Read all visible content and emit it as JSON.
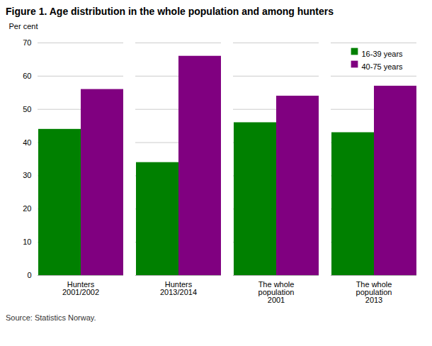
{
  "chart_data": {
    "type": "bar",
    "title": "Figure 1. Age distribution in the whole population and among hunters",
    "ylabel": "Per cent",
    "caption": "Source: Statistics Norway.",
    "categories": [
      "Hunters\n2001/2002",
      "Hunters\n2013/2014",
      "The whole\npopulation\n2001",
      "The whole\npopulation\n2013"
    ],
    "series": [
      {
        "name": "16-39 years",
        "color": "#008000",
        "values": [
          44,
          34,
          46,
          43
        ]
      },
      {
        "name": "40-75 years",
        "color": "#800080",
        "values": [
          56,
          66,
          54,
          57
        ]
      }
    ],
    "ylim": [
      0,
      70
    ],
    "yticks": [
      0,
      10,
      20,
      30,
      40,
      50,
      60,
      70
    ],
    "grid": true,
    "legend": "upper right"
  }
}
